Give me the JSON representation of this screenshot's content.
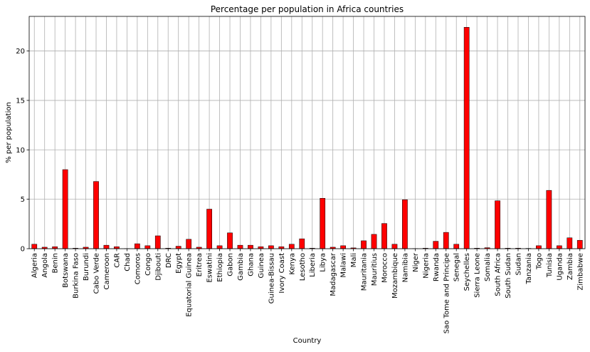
{
  "chart_data": {
    "type": "bar",
    "title": "Percentage per population in Africa countries",
    "xlabel": "Country",
    "ylabel": "% per population",
    "ylim": [
      0,
      23.5
    ],
    "yticks": [
      0,
      5,
      10,
      15,
      20
    ],
    "grid": true,
    "bar_color": "#ff0000",
    "edge_color": "#000000",
    "categories": [
      "Algeria",
      "Angola",
      "Benin",
      "Botswana",
      "Burkina Faso",
      "Burundi",
      "Cabo Verde",
      "Cameroon",
      "CAR",
      "Chad",
      "Comoros",
      "Congo",
      "Djibouti",
      "DRC",
      "Egypt",
      "Equatorial Guinea",
      "Eritrea",
      "Eswatini",
      "Ethiopia",
      "Gabon",
      "Gambia",
      "Ghana",
      "Guinea",
      "Guinea-Bissau",
      "Ivory Coast",
      "Kenya",
      "Lesotho",
      "Liberia",
      "Libya",
      "Madagascar",
      "Malawi",
      "Mali",
      "Mauritania",
      "Mauritius",
      "Morocco",
      "Mozambique",
      "Namibia",
      "Niger",
      "Nigeria",
      "Rwanda",
      "Sao Tome and Principe",
      "Senegal",
      "Seychelles",
      "Sierra Leone",
      "Somalia",
      "South Africa",
      "South Sudan",
      "Sudan",
      "Tanzania",
      "Togo",
      "Tunisia",
      "Uganda",
      "Zambia",
      "Zimbabwe"
    ],
    "values": [
      0.45,
      0.15,
      0.2,
      8.0,
      0.05,
      0.15,
      6.8,
      0.35,
      0.2,
      0.01,
      0.5,
      0.3,
      1.3,
      0.05,
      0.25,
      0.95,
      0.15,
      4.0,
      0.3,
      1.6,
      0.35,
      0.35,
      0.2,
      0.3,
      0.2,
      0.45,
      1.0,
      0.05,
      5.1,
      0.15,
      0.3,
      0.08,
      0.8,
      1.45,
      2.55,
      0.45,
      4.95,
      0.01,
      0.05,
      0.75,
      1.65,
      0.45,
      22.4,
      0.05,
      0.1,
      4.85,
      0.05,
      0.05,
      0.03,
      0.3,
      5.9,
      0.3,
      1.1,
      0.85
    ]
  }
}
